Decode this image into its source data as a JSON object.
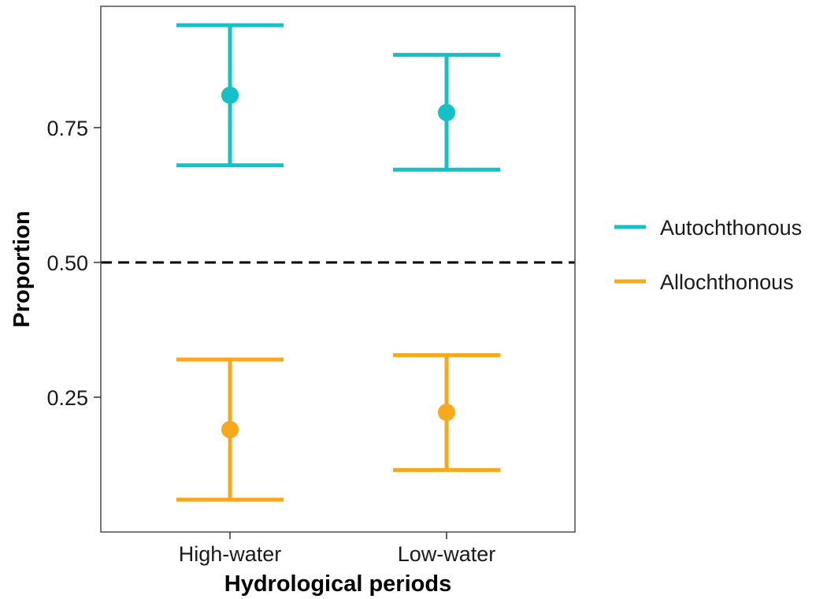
{
  "chart_data": {
    "type": "errorbar",
    "title": "",
    "xlabel": "Hydrological periods",
    "ylabel": "Proportion",
    "categories": [
      "High-water",
      "Low-water"
    ],
    "ylim": [
      0.0,
      0.975
    ],
    "yticks": [
      {
        "value": 0.25,
        "label": "0.25"
      },
      {
        "value": 0.5,
        "label": "0.50"
      },
      {
        "value": 0.75,
        "label": "0.75"
      }
    ],
    "reference_line": {
      "value": 0.5,
      "style": "dashed"
    },
    "grid": false,
    "legend_position": "right",
    "series": [
      {
        "name": "Autochthonous",
        "color": "#13C1C6",
        "means": [
          0.81,
          0.778
        ],
        "lower": [
          0.68,
          0.672
        ],
        "upper": [
          0.94,
          0.885
        ]
      },
      {
        "name": "Allochthonous",
        "color": "#F8A81C",
        "means": [
          0.19,
          0.222
        ],
        "lower": [
          0.06,
          0.115
        ],
        "upper": [
          0.32,
          0.328
        ]
      }
    ]
  }
}
